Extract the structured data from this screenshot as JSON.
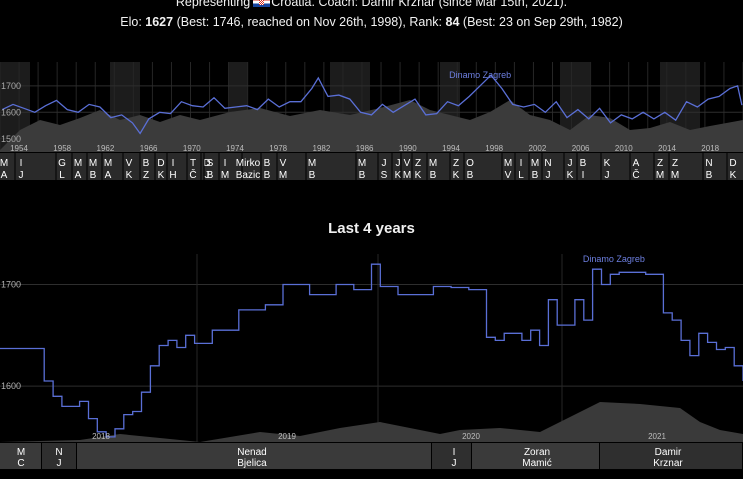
{
  "header": {
    "line1_pre": "Representing",
    "line1_post": "Croatia. Coach: Damir Krznar (since Mar 15th, 2021).",
    "elo_label": "Elo:",
    "elo_value": "1627",
    "elo_best": "(Best: 1746, reached on Nov 26th, 1998), Rank:",
    "rank_value": "84",
    "rank_best": "(Best: 23 on Sep 29th, 1982)"
  },
  "section2_title": "Last 4 years",
  "chart_data": [
    {
      "type": "line",
      "title": "",
      "x_ticks": [
        "1954",
        "1958",
        "1962",
        "1966",
        "1970",
        "1974",
        "1978",
        "1982",
        "1986",
        "1990",
        "1994",
        "1998",
        "2002",
        "2006",
        "2010",
        "2014",
        "2018"
      ],
      "y_ticks": [
        "1700",
        "1600",
        "1500"
      ],
      "ylim": [
        1450,
        1790
      ],
      "xlim": [
        1953.3,
        2021.7
      ],
      "annotation": {
        "text": "Dinamo Zagreb",
        "x": 1997.5,
        "y": 1722
      },
      "series": [
        {
          "x": [
            1953.5,
            1954.5,
            1955.5,
            1956.5,
            1957.5,
            1958.5,
            1959.5,
            1960.5,
            1961.5,
            1962.5,
            1963.5,
            1964.5,
            1965.5,
            1966.2,
            1967,
            1968,
            1969,
            1970,
            1971,
            1972,
            1973,
            1974,
            1975,
            1976,
            1977,
            1978,
            1979,
            1980,
            1981,
            1982,
            1982.6,
            1983.5,
            1984.5,
            1985.5,
            1986.5,
            1987.5,
            1988.5,
            1989.5,
            1990.5,
            1991.5,
            1992.5,
            1993.5,
            1994.5,
            1995.5,
            1996.5,
            1997.5,
            1998.5,
            1999.5,
            2000.5,
            2001.5,
            2002.5,
            2003.5,
            2004.5,
            2005.5,
            2006.5,
            2007.5,
            2008.5,
            2009.5,
            2010.5,
            2011.5,
            2012.5,
            2013.5,
            2014.5,
            2015.5,
            2016.5,
            2017.5,
            2018.5,
            2019.5,
            2020.5,
            2021.2,
            2021.6
          ],
          "y": [
            1610,
            1630,
            1615,
            1600,
            1625,
            1645,
            1610,
            1600,
            1630,
            1620,
            1580,
            1590,
            1560,
            1520,
            1575,
            1600,
            1595,
            1640,
            1625,
            1620,
            1655,
            1615,
            1620,
            1625,
            1610,
            1650,
            1620,
            1640,
            1640,
            1690,
            1730,
            1660,
            1665,
            1650,
            1600,
            1590,
            1630,
            1600,
            1625,
            1650,
            1590,
            1595,
            1640,
            1625,
            1660,
            1700,
            1740,
            1690,
            1630,
            1620,
            1630,
            1600,
            1640,
            1580,
            1610,
            1575,
            1615,
            1560,
            1590,
            1575,
            1600,
            1575,
            1600,
            1570,
            1640,
            1620,
            1650,
            1660,
            1690,
            1700,
            1627
          ]
        }
      ]
    },
    {
      "type": "line",
      "title": "Last 4 years",
      "x_ticks": [
        "2018",
        "2019",
        "2020",
        "2021"
      ],
      "y_ticks": [
        "1700",
        "1600"
      ],
      "ylim": [
        1545,
        1730
      ],
      "xlim": [
        2017.45,
        2021.65
      ],
      "annotation": {
        "text": "Dinamo Zagreb",
        "x": 2020.92,
        "y": 1720
      },
      "series": [
        {
          "x": [
            2017.45,
            2017.6,
            2017.7,
            2017.75,
            2017.8,
            2017.9,
            2017.95,
            2018,
            2018.05,
            2018.1,
            2018.15,
            2018.2,
            2018.25,
            2018.3,
            2018.35,
            2018.4,
            2018.45,
            2018.5,
            2018.55,
            2018.65,
            2018.8,
            2018.95,
            2019.05,
            2019.2,
            2019.35,
            2019.45,
            2019.55,
            2019.6,
            2019.7,
            2019.9,
            2020.0,
            2020.1,
            2020.2,
            2020.25,
            2020.3,
            2020.4,
            2020.45,
            2020.5,
            2020.55,
            2020.6,
            2020.7,
            2020.75,
            2020.8,
            2020.85,
            2020.9,
            2020.95,
            2021.0,
            2021.1,
            2021.2,
            2021.25,
            2021.3,
            2021.35,
            2021.4,
            2021.45,
            2021.5,
            2021.55,
            2021.6,
            2021.65
          ],
          "y": [
            1637,
            1637,
            1605,
            1590,
            1580,
            1585,
            1568,
            1555,
            1550,
            1558,
            1572,
            1575,
            1594,
            1620,
            1640,
            1645,
            1638,
            1650,
            1642,
            1655,
            1675,
            1680,
            1700,
            1690,
            1700,
            1695,
            1720,
            1698,
            1690,
            1698,
            1697,
            1695,
            1648,
            1645,
            1652,
            1645,
            1655,
            1640,
            1685,
            1660,
            1685,
            1665,
            1715,
            1700,
            1710,
            1712,
            1712,
            1710,
            1672,
            1665,
            1645,
            1630,
            1652,
            1643,
            1636,
            1638,
            1620,
            1605
          ]
        }
      ]
    }
  ],
  "coaches_top": [
    {
      "label1": "M",
      "label2": "A"
    },
    {
      "label1": "I",
      "label2": "J"
    },
    {
      "label1": "G",
      "label2": "L"
    },
    {
      "label1": "M",
      "label2": "A"
    },
    {
      "label1": "M",
      "label2": "B"
    },
    {
      "label1": "M",
      "label2": "A"
    },
    {
      "label1": "V",
      "label2": "K"
    },
    {
      "label1": "B",
      "label2": "Z"
    },
    {
      "label1": "D",
      "label2": "K"
    },
    {
      "label1": "I",
      "label2": "H"
    },
    {
      "label1": "T",
      "label2": "Č"
    },
    {
      "label1": "D",
      "label2": "J"
    },
    {
      "label1": "S",
      "label2": "B"
    },
    {
      "label1": "I",
      "label2": "M"
    },
    {
      "label1": "Mirko",
      "label2": "Bazic"
    },
    {
      "label1": "B",
      "label2": "B"
    },
    {
      "label1": "V",
      "label2": "M"
    },
    {
      "label1": "M",
      "label2": "B"
    },
    {
      "label1": "M",
      "label2": "B"
    },
    {
      "label1": "J",
      "label2": "S"
    },
    {
      "label1": "J",
      "label2": "K"
    },
    {
      "label1": "V",
      "label2": "M"
    },
    {
      "label1": "Z",
      "label2": "K"
    },
    {
      "label1": "M",
      "label2": "B"
    },
    {
      "label1": "Z",
      "label2": "K"
    },
    {
      "label1": "O",
      "label2": "B"
    },
    {
      "label1": "M",
      "label2": "V"
    },
    {
      "label1": "I",
      "label2": "L"
    },
    {
      "label1": "M",
      "label2": "B"
    },
    {
      "label1": "N",
      "label2": "J"
    },
    {
      "label1": "J",
      "label2": "K"
    },
    {
      "label1": "B",
      "label2": "I"
    },
    {
      "label1": "K",
      "label2": "J"
    },
    {
      "label1": "A",
      "label2": "Č"
    },
    {
      "label1": "Z",
      "label2": "M"
    },
    {
      "label1": "Z",
      "label2": "M"
    },
    {
      "label1": "N",
      "label2": "B"
    },
    {
      "label1": "D",
      "label2": "K"
    }
  ],
  "coaches_bottom": [
    {
      "label1": "M",
      "label2": "C"
    },
    {
      "label1": "N",
      "label2": "J"
    },
    {
      "label1": "Nenad",
      "label2": "Bjelica"
    },
    {
      "label1": "I",
      "label2": "J"
    },
    {
      "label1": "Zoran",
      "label2": "Mamić"
    },
    {
      "label1": "Damir",
      "label2": "Krznar"
    }
  ],
  "colors": {
    "line": "#5a6fd6",
    "annotation": "#6d7fe0",
    "background": "#000000",
    "band": "#3a3a3a"
  }
}
